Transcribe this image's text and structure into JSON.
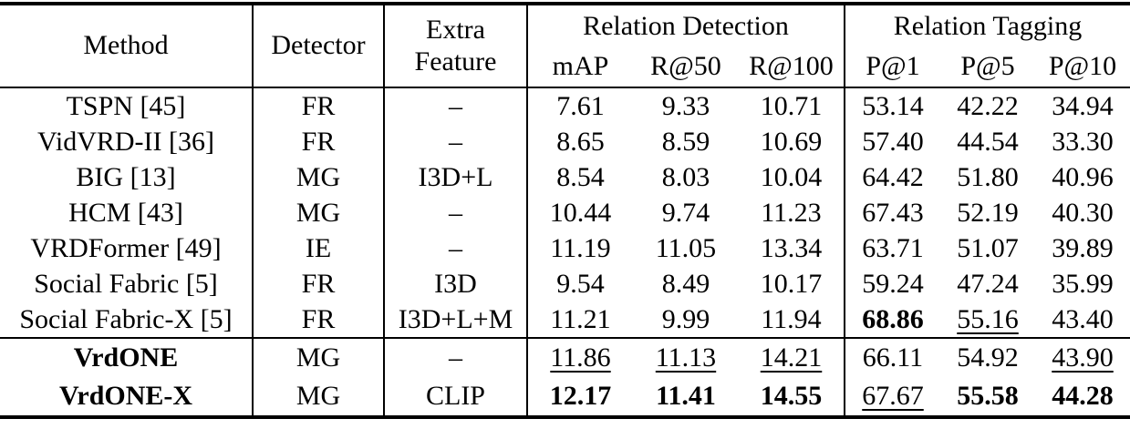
{
  "table": {
    "header": {
      "method": "Method",
      "detector": "Detector",
      "extra_feature": "Extra Feature",
      "relation_detection": "Relation Detection",
      "relation_tagging": "Relation Tagging",
      "detection_sub": [
        "mAP",
        "R@50",
        "R@100"
      ],
      "tagging_sub": [
        "P@1",
        "P@5",
        "P@10"
      ]
    },
    "rows": [
      {
        "method": "TSPN [45]",
        "method_bold": false,
        "section": "baseline",
        "detector": "FR",
        "extra_feature": "–",
        "values": [
          {
            "v": "7.61",
            "s": "n"
          },
          {
            "v": "9.33",
            "s": "n"
          },
          {
            "v": "10.71",
            "s": "n"
          },
          {
            "v": "53.14",
            "s": "n"
          },
          {
            "v": "42.22",
            "s": "n"
          },
          {
            "v": "34.94",
            "s": "n"
          }
        ]
      },
      {
        "method": "VidVRD-II [36]",
        "method_bold": false,
        "section": "baseline",
        "detector": "FR",
        "extra_feature": "–",
        "values": [
          {
            "v": "8.65",
            "s": "n"
          },
          {
            "v": "8.59",
            "s": "n"
          },
          {
            "v": "10.69",
            "s": "n"
          },
          {
            "v": "57.40",
            "s": "n"
          },
          {
            "v": "44.54",
            "s": "n"
          },
          {
            "v": "33.30",
            "s": "n"
          }
        ]
      },
      {
        "method": "BIG [13]",
        "method_bold": false,
        "section": "baseline",
        "detector": "MG",
        "extra_feature": "I3D+L",
        "values": [
          {
            "v": "8.54",
            "s": "n"
          },
          {
            "v": "8.03",
            "s": "n"
          },
          {
            "v": "10.04",
            "s": "n"
          },
          {
            "v": "64.42",
            "s": "n"
          },
          {
            "v": "51.80",
            "s": "n"
          },
          {
            "v": "40.96",
            "s": "n"
          }
        ]
      },
      {
        "method": "HCM [43]",
        "method_bold": false,
        "section": "baseline",
        "detector": "MG",
        "extra_feature": "–",
        "values": [
          {
            "v": "10.44",
            "s": "n"
          },
          {
            "v": "9.74",
            "s": "n"
          },
          {
            "v": "11.23",
            "s": "n"
          },
          {
            "v": "67.43",
            "s": "n"
          },
          {
            "v": "52.19",
            "s": "n"
          },
          {
            "v": "40.30",
            "s": "n"
          }
        ]
      },
      {
        "method": "VRDFormer [49]",
        "method_bold": false,
        "section": "baseline",
        "detector": "IE",
        "extra_feature": "–",
        "values": [
          {
            "v": "11.19",
            "s": "n"
          },
          {
            "v": "11.05",
            "s": "n"
          },
          {
            "v": "13.34",
            "s": "n"
          },
          {
            "v": "63.71",
            "s": "n"
          },
          {
            "v": "51.07",
            "s": "n"
          },
          {
            "v": "39.89",
            "s": "n"
          }
        ]
      },
      {
        "method": "Social Fabric [5]",
        "method_bold": false,
        "section": "baseline",
        "detector": "FR",
        "extra_feature": "I3D",
        "values": [
          {
            "v": "9.54",
            "s": "n"
          },
          {
            "v": "8.49",
            "s": "n"
          },
          {
            "v": "10.17",
            "s": "n"
          },
          {
            "v": "59.24",
            "s": "n"
          },
          {
            "v": "47.24",
            "s": "n"
          },
          {
            "v": "35.99",
            "s": "n"
          }
        ]
      },
      {
        "method": "Social Fabric-X [5]",
        "method_bold": false,
        "section": "baseline",
        "detector": "FR",
        "extra_feature": "I3D+L+M",
        "values": [
          {
            "v": "11.21",
            "s": "n"
          },
          {
            "v": "9.99",
            "s": "n"
          },
          {
            "v": "11.94",
            "s": "n"
          },
          {
            "v": "68.86",
            "s": "b"
          },
          {
            "v": "55.16",
            "s": "u"
          },
          {
            "v": "43.40",
            "s": "n"
          }
        ]
      },
      {
        "method": "VrdONE",
        "method_bold": true,
        "section": "ours",
        "detector": "MG",
        "extra_feature": "–",
        "values": [
          {
            "v": "11.86",
            "s": "u"
          },
          {
            "v": "11.13",
            "s": "u"
          },
          {
            "v": "14.21",
            "s": "u"
          },
          {
            "v": "66.11",
            "s": "n"
          },
          {
            "v": "54.92",
            "s": "n"
          },
          {
            "v": "43.90",
            "s": "u"
          }
        ]
      },
      {
        "method": "VrdONE-X",
        "method_bold": true,
        "section": "ours",
        "detector": "MG",
        "extra_feature": "CLIP",
        "values": [
          {
            "v": "12.17",
            "s": "b"
          },
          {
            "v": "11.41",
            "s": "b"
          },
          {
            "v": "14.55",
            "s": "b"
          },
          {
            "v": "67.67",
            "s": "u"
          },
          {
            "v": "55.58",
            "s": "b"
          },
          {
            "v": "44.28",
            "s": "b"
          }
        ]
      }
    ]
  }
}
